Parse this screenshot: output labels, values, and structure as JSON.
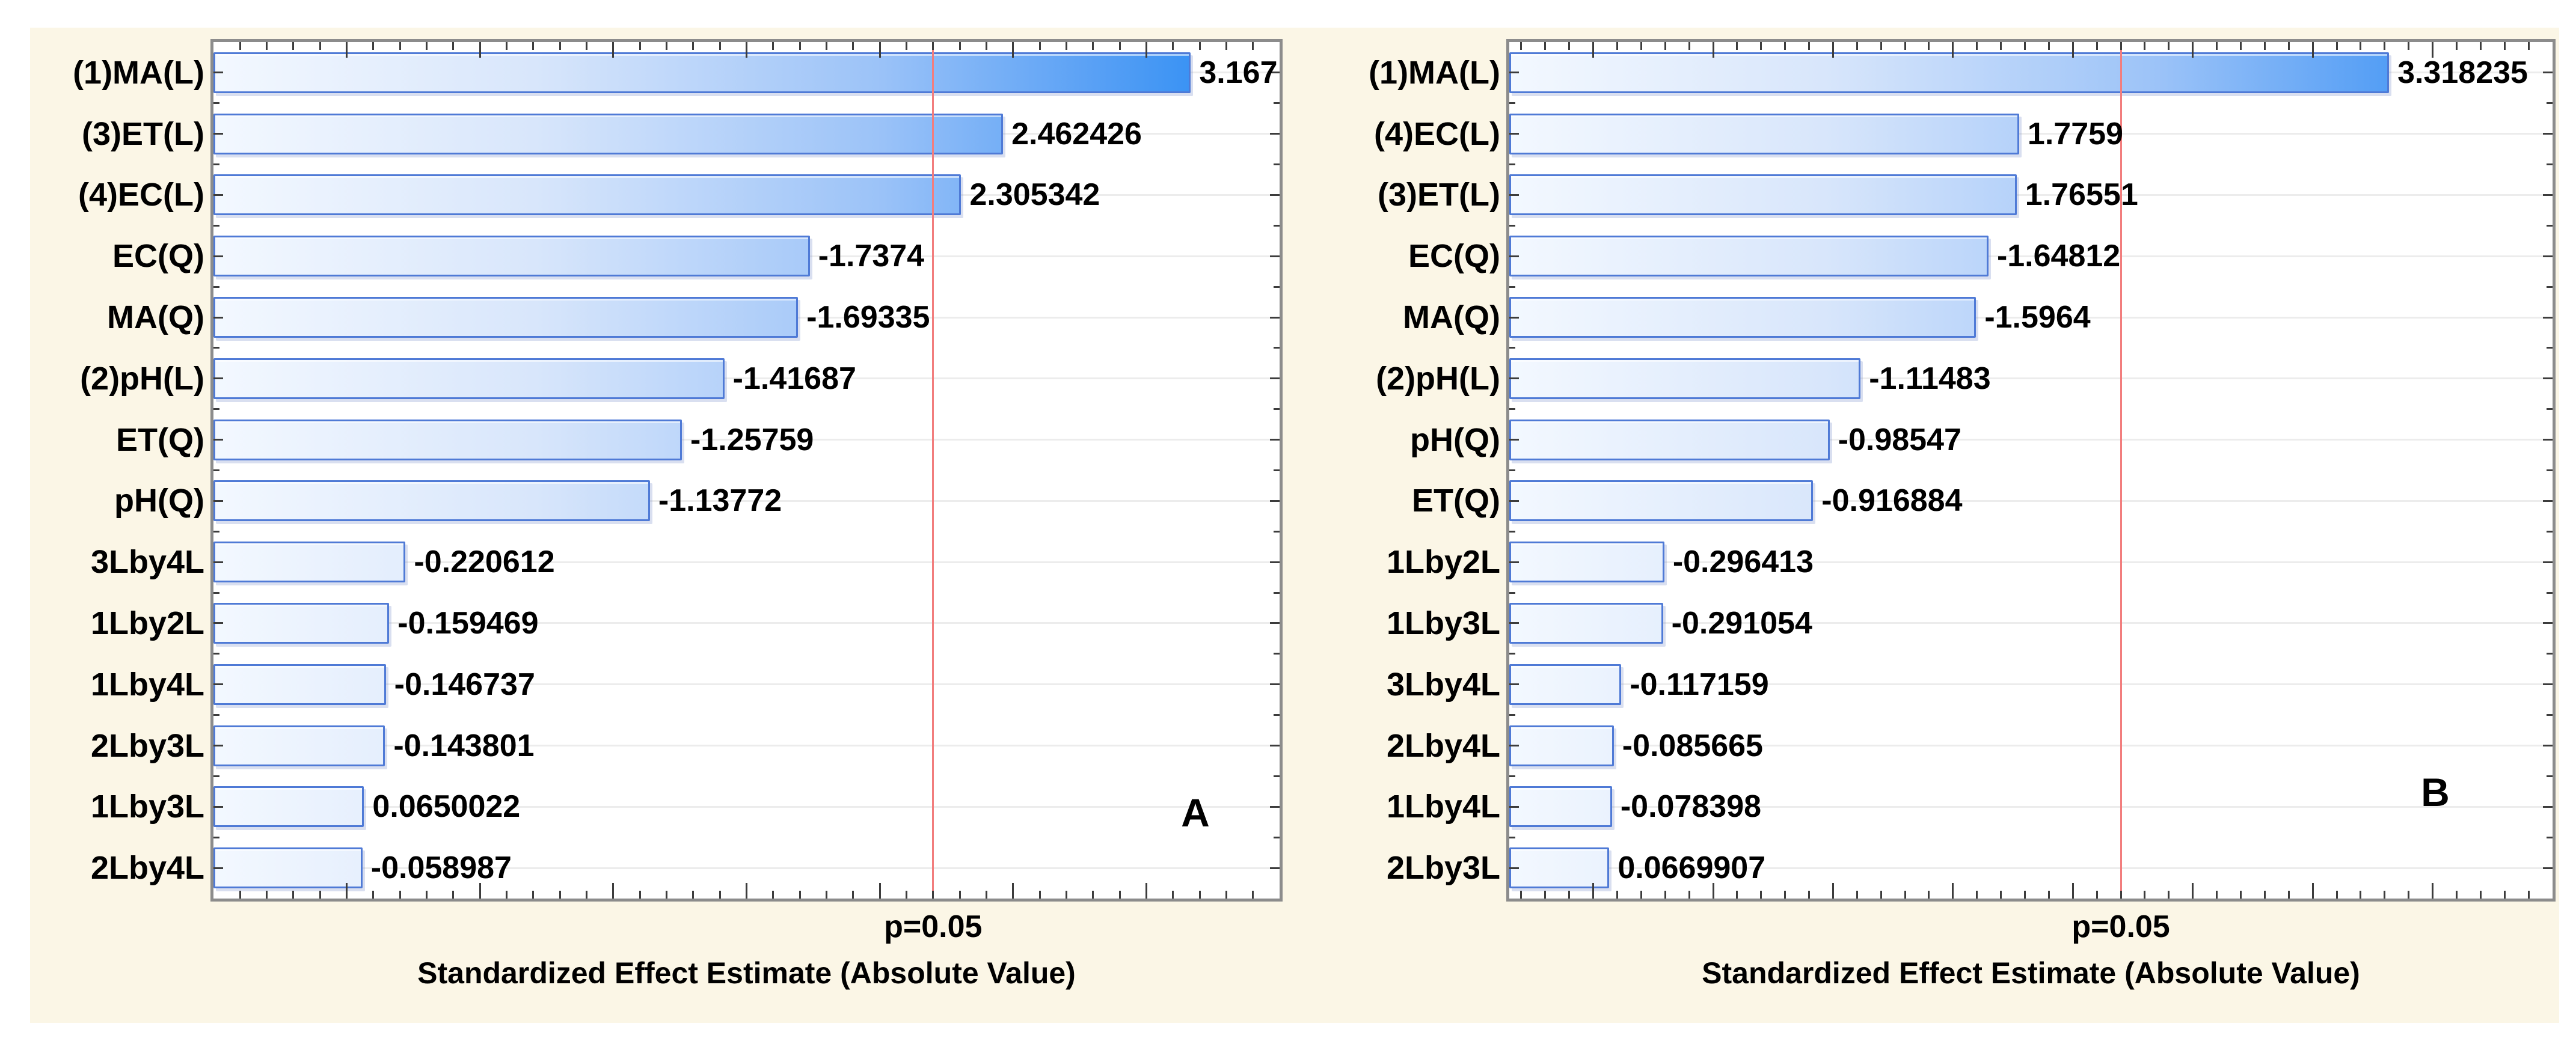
{
  "figure": {
    "background_color": "#fbf6e6",
    "description": "Two horizontal Pareto charts of standardized effect estimates, panels A and B"
  },
  "colors": {
    "page_background": "#ffffff",
    "panel_background": "#fbf6e6",
    "plot_background": "#ffffff",
    "plot_border": "#8c8c8c",
    "bar_border": "#4f7ad6",
    "bar_gradient_start": "#f3f8ff",
    "bar_gradient_mid": "#9cc3f8",
    "bar_gradient_end": "#1e86f3",
    "reference_line": "#f27d7d",
    "gridline": "#ececec",
    "tick": "#3c3c3c",
    "text": "#000000"
  },
  "chart_data": [
    {
      "type": "bar",
      "orientation": "horizontal",
      "panel_label": "A",
      "title": "",
      "xlabel": "Standardized Effect Estimate (Absolute Value)",
      "ylabel": "",
      "legend": "none",
      "grid": "horizontal category gridlines",
      "xlim": [
        -0.5,
        3.5
      ],
      "x_major_tick_step": 0.5,
      "x_minor_tick_step": 0.1,
      "reference_line": {
        "label": "p=0.05",
        "value": 2.2
      },
      "categories": [
        "(1)MA(L)",
        "(3)ET(L)",
        "(4)EC(L)",
        "EC(Q)",
        "MA(Q)",
        "(2)pH(L)",
        "ET(Q)",
        "pH(Q)",
        "3Lby4L",
        "1Lby2L",
        "1Lby4L",
        "2Lby3L",
        "1Lby3L",
        "2Lby4L"
      ],
      "values": [
        3.167,
        2.462426,
        2.305342,
        -1.7374,
        -1.69335,
        -1.41687,
        -1.25759,
        -1.13772,
        -0.220612,
        -0.159469,
        -0.146737,
        -0.143801,
        0.0650022,
        -0.058987
      ],
      "value_labels": [
        "3.167",
        "2.462426",
        "2.305342",
        "-1.7374",
        "-1.69335",
        "-1.41687",
        "-1.25759",
        "-1.13772",
        "-0.220612",
        "-0.159469",
        "-0.146737",
        "-0.143801",
        "0.0650022",
        "-0.058987"
      ]
    },
    {
      "type": "bar",
      "orientation": "horizontal",
      "panel_label": "B",
      "title": "",
      "xlabel": "Standardized Effect Estimate (Absolute Value)",
      "ylabel": "",
      "legend": "none",
      "grid": "horizontal category gridlines",
      "xlim": [
        -0.35,
        4.0
      ],
      "x_major_tick_step": 0.5,
      "x_minor_tick_step": 0.1,
      "reference_line": {
        "label": "p=0.05",
        "value": 2.2
      },
      "categories": [
        "(1)MA(L)",
        "(4)EC(L)",
        "(3)ET(L)",
        "EC(Q)",
        "MA(Q)",
        "(2)pH(L)",
        "pH(Q)",
        "ET(Q)",
        "1Lby2L",
        "1Lby3L",
        "3Lby4L",
        "2Lby4L",
        "1Lby4L",
        "2Lby3L"
      ],
      "values": [
        3.318235,
        1.7759,
        1.76551,
        -1.64812,
        -1.5964,
        -1.11483,
        -0.98547,
        -0.916884,
        -0.296413,
        -0.291054,
        -0.117159,
        -0.085665,
        -0.078398,
        0.0669907
      ],
      "value_labels": [
        "3.318235",
        "1.7759",
        "1.76551",
        "-1.64812",
        "-1.5964",
        "-1.11483",
        "-0.98547",
        "-0.916884",
        "-0.296413",
        "-0.291054",
        "-0.117159",
        "-0.085665",
        "-0.078398",
        "0.0669907"
      ]
    }
  ]
}
